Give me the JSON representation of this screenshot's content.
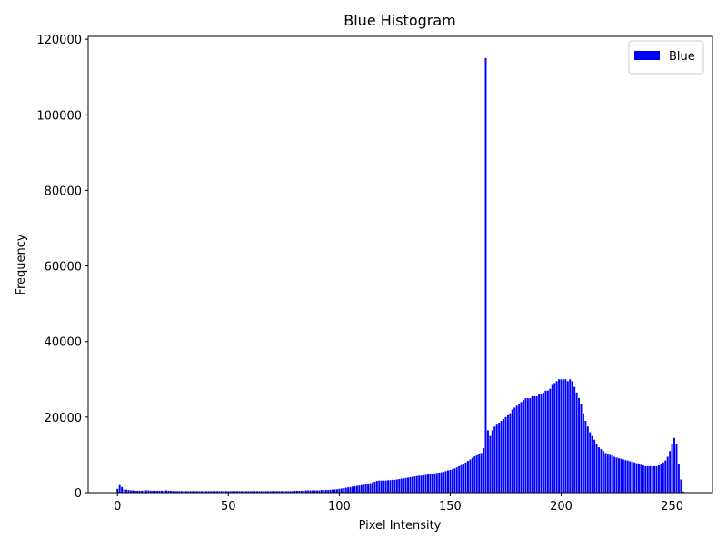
{
  "chart_data": {
    "type": "bar",
    "title": "Blue Histogram",
    "x_label": "Pixel Intensity",
    "y_label": "Frequency",
    "x": [
      0,
      1,
      2,
      3,
      4,
      5,
      6,
      7,
      8,
      9,
      10,
      11,
      12,
      13,
      14,
      15,
      16,
      17,
      18,
      19,
      20,
      21,
      22,
      23,
      24,
      25,
      26,
      27,
      28,
      29,
      30,
      31,
      32,
      33,
      34,
      35,
      36,
      37,
      38,
      39,
      40,
      41,
      42,
      43,
      44,
      45,
      46,
      47,
      48,
      49,
      50,
      51,
      52,
      53,
      54,
      55,
      56,
      57,
      58,
      59,
      60,
      61,
      62,
      63,
      64,
      65,
      66,
      67,
      68,
      69,
      70,
      71,
      72,
      73,
      74,
      75,
      76,
      77,
      78,
      79,
      80,
      81,
      82,
      83,
      84,
      85,
      86,
      87,
      88,
      89,
      90,
      91,
      92,
      93,
      94,
      95,
      96,
      97,
      98,
      99,
      100,
      101,
      102,
      103,
      104,
      105,
      106,
      107,
      108,
      109,
      110,
      111,
      112,
      113,
      114,
      115,
      116,
      117,
      118,
      119,
      120,
      121,
      122,
      123,
      124,
      125,
      126,
      127,
      128,
      129,
      130,
      131,
      132,
      133,
      134,
      135,
      136,
      137,
      138,
      139,
      140,
      141,
      142,
      143,
      144,
      145,
      146,
      147,
      148,
      149,
      150,
      151,
      152,
      153,
      154,
      155,
      156,
      157,
      158,
      159,
      160,
      161,
      162,
      163,
      164,
      165,
      166,
      167,
      168,
      169,
      170,
      171,
      172,
      173,
      174,
      175,
      176,
      177,
      178,
      179,
      180,
      181,
      182,
      183,
      184,
      185,
      186,
      187,
      188,
      189,
      190,
      191,
      192,
      193,
      194,
      195,
      196,
      197,
      198,
      199,
      200,
      201,
      202,
      203,
      204,
      205,
      206,
      207,
      208,
      209,
      210,
      211,
      212,
      213,
      214,
      215,
      216,
      217,
      218,
      219,
      220,
      221,
      222,
      223,
      224,
      225,
      226,
      227,
      228,
      229,
      230,
      231,
      232,
      233,
      234,
      235,
      236,
      237,
      238,
      239,
      240,
      241,
      242,
      243,
      244,
      245,
      246,
      247,
      248,
      249,
      250,
      251,
      252,
      253,
      254,
      255
    ],
    "series": [
      {
        "name": "Blue",
        "color": "#0000ff",
        "values": [
          1000,
          2000,
          1500,
          900,
          800,
          700,
          600,
          600,
          500,
          500,
          500,
          500,
          600,
          600,
          600,
          500,
          500,
          500,
          500,
          500,
          500,
          500,
          600,
          500,
          500,
          400,
          400,
          400,
          400,
          400,
          400,
          400,
          400,
          400,
          400,
          400,
          400,
          400,
          400,
          400,
          400,
          400,
          400,
          400,
          400,
          400,
          400,
          400,
          400,
          400,
          400,
          400,
          400,
          400,
          400,
          400,
          400,
          400,
          400,
          400,
          400,
          400,
          400,
          400,
          400,
          400,
          400,
          400,
          400,
          400,
          400,
          400,
          400,
          400,
          400,
          400,
          400,
          400,
          400,
          400,
          500,
          500,
          500,
          500,
          500,
          600,
          600,
          600,
          600,
          600,
          600,
          600,
          700,
          700,
          700,
          700,
          800,
          800,
          900,
          900,
          1000,
          1100,
          1200,
          1300,
          1400,
          1500,
          1600,
          1700,
          1800,
          1900,
          2000,
          2100,
          2200,
          2300,
          2500,
          2700,
          2900,
          3100,
          3200,
          3200,
          3200,
          3200,
          3300,
          3300,
          3400,
          3400,
          3500,
          3600,
          3700,
          3800,
          3900,
          4000,
          4100,
          4200,
          4300,
          4400,
          4500,
          4500,
          4600,
          4700,
          4800,
          4900,
          5000,
          5100,
          5200,
          5300,
          5400,
          5500,
          5700,
          5900,
          6000,
          6200,
          6400,
          6700,
          7000,
          7300,
          7700,
          8000,
          8400,
          8800,
          9200,
          9600,
          9900,
          10200,
          10500,
          11800,
          115000,
          16500,
          15000,
          16500,
          17500,
          18000,
          18500,
          19000,
          19500,
          20000,
          20500,
          21000,
          22000,
          22500,
          23000,
          23500,
          24000,
          24500,
          25000,
          25000,
          25000,
          25500,
          25500,
          25500,
          26000,
          26000,
          26500,
          27000,
          27000,
          27500,
          28500,
          29000,
          29500,
          30000,
          30000,
          30000,
          30000,
          29500,
          30000,
          29500,
          28000,
          26500,
          25000,
          23500,
          21000,
          19000,
          17500,
          16000,
          15000,
          14000,
          13000,
          12000,
          11500,
          11000,
          10500,
          10200,
          10000,
          9800,
          9500,
          9300,
          9100,
          9000,
          8800,
          8600,
          8500,
          8300,
          8200,
          8000,
          7800,
          7600,
          7400,
          7200,
          7000,
          7000,
          7000,
          7000,
          7000,
          7000,
          7200,
          7500,
          8000,
          8500,
          9500,
          11000,
          13000,
          14500,
          13000,
          7500,
          3500,
          300
        ]
      }
    ],
    "xlim": [
      -13.19,
      268.19
    ],
    "ylim": [
      0,
      120750
    ],
    "xticks": [
      0,
      50,
      100,
      150,
      200,
      250
    ],
    "yticks": [
      0,
      20000,
      40000,
      60000,
      80000,
      100000,
      120000
    ],
    "legend": "upper right"
  }
}
